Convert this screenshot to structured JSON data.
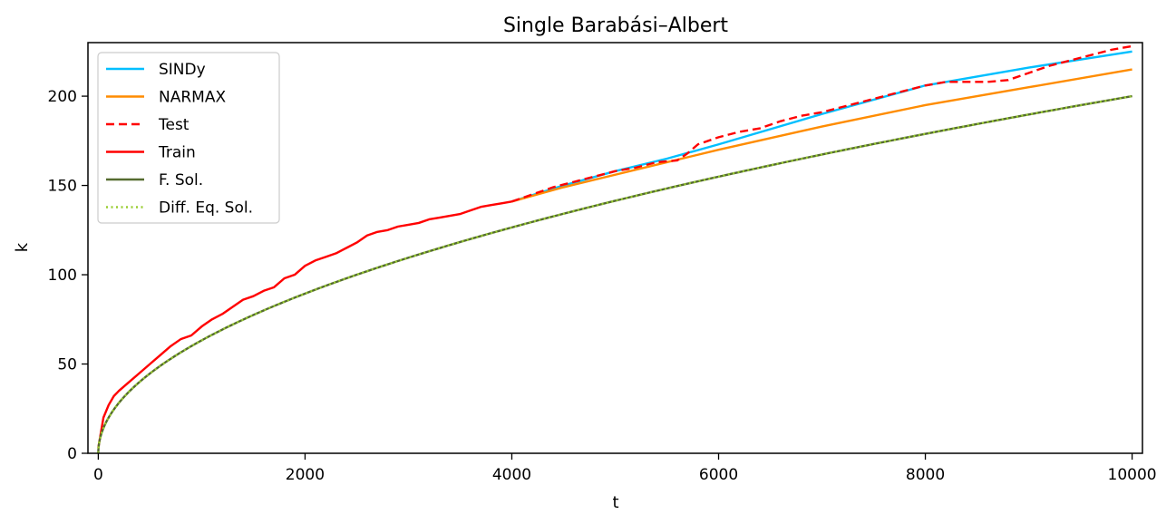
{
  "chart_data": {
    "type": "line",
    "title": "Single Barabási–Albert",
    "xlabel": "t",
    "ylabel": "k",
    "xlim": [
      -100,
      10100
    ],
    "ylim": [
      0,
      230
    ],
    "xticks": [
      0,
      2000,
      4000,
      6000,
      8000,
      10000
    ],
    "yticks": [
      0,
      50,
      100,
      150,
      200
    ],
    "xtick_labels": [
      "0",
      "2000",
      "4000",
      "6000",
      "8000",
      "10000"
    ],
    "ytick_labels": [
      "0",
      "50",
      "100",
      "150",
      "200"
    ],
    "grid": false,
    "legend_position": "upper-left",
    "series": [
      {
        "name": "SINDy",
        "color": "#00bfff",
        "style": "solid",
        "x": [
          4000,
          4500,
          5000,
          5500,
          6000,
          7000,
          8000,
          9000,
          10000
        ],
        "y": [
          141,
          150,
          158,
          165,
          173,
          190,
          206,
          216,
          225
        ]
      },
      {
        "name": "NARMAX",
        "color": "#ff8c00",
        "style": "solid",
        "x": [
          4000,
          4500,
          5000,
          5500,
          6000,
          7000,
          8000,
          9000,
          10000
        ],
        "y": [
          141,
          149,
          156,
          163,
          170,
          183,
          195,
          205,
          215
        ]
      },
      {
        "name": "Test",
        "color": "#ff0000",
        "style": "dashed",
        "x": [
          4000,
          4200,
          4400,
          4600,
          4800,
          5000,
          5200,
          5400,
          5600,
          5700,
          5800,
          6000,
          6200,
          6400,
          6600,
          6800,
          7000,
          7200,
          7400,
          7600,
          7800,
          8000,
          8200,
          8400,
          8600,
          8800,
          9000,
          9200,
          9400,
          9600,
          9800,
          10000
        ],
        "y": [
          141,
          145,
          149,
          152,
          155,
          158,
          160,
          163,
          164,
          168,
          173,
          177,
          180,
          182,
          186,
          189,
          191,
          194,
          197,
          200,
          203,
          206,
          208,
          208,
          208,
          209,
          213,
          217,
          220,
          223,
          226,
          228
        ]
      },
      {
        "name": "Train",
        "color": "#ff0000",
        "style": "solid",
        "x": [
          0,
          50,
          100,
          150,
          200,
          300,
          400,
          500,
          600,
          700,
          800,
          900,
          1000,
          1100,
          1200,
          1300,
          1400,
          1500,
          1600,
          1700,
          1800,
          1900,
          2000,
          2100,
          2200,
          2300,
          2400,
          2500,
          2600,
          2700,
          2800,
          2900,
          3000,
          3100,
          3200,
          3300,
          3400,
          3500,
          3600,
          3700,
          3800,
          3900,
          4000
        ],
        "y": [
          3,
          20,
          27,
          32,
          35,
          40,
          45,
          50,
          55,
          60,
          64,
          66,
          71,
          75,
          78,
          82,
          86,
          88,
          91,
          93,
          98,
          100,
          105,
          108,
          110,
          112,
          115,
          118,
          122,
          124,
          125,
          127,
          128,
          129,
          131,
          132,
          133,
          134,
          136,
          138,
          139,
          140,
          141
        ]
      },
      {
        "name": "F. Sol.",
        "color": "#556b2f",
        "style": "solid",
        "formula": "2*sqrt(t)",
        "x": [
          10,
          50,
          100,
          200,
          300,
          500,
          800,
          1000,
          1500,
          2000,
          3000,
          4000,
          5000,
          6000,
          7000,
          8000,
          9000,
          10000
        ],
        "y": [
          6.3,
          14.1,
          20,
          28.3,
          34.6,
          44.7,
          56.6,
          63.2,
          77.5,
          89.4,
          109.5,
          126.5,
          141.4,
          154.9,
          167.3,
          178.9,
          189.7,
          200
        ]
      },
      {
        "name": "Diff. Eq. Sol.",
        "color": "#9acd32",
        "style": "dotted",
        "formula": "2*sqrt(t)",
        "x": [
          10,
          50,
          100,
          200,
          300,
          500,
          800,
          1000,
          1500,
          2000,
          3000,
          4000,
          5000,
          6000,
          7000,
          8000,
          9000,
          10000
        ],
        "y": [
          6.3,
          14.1,
          20,
          28.3,
          34.6,
          44.7,
          56.6,
          63.2,
          77.5,
          89.4,
          109.5,
          126.5,
          141.4,
          154.9,
          167.3,
          178.9,
          189.7,
          200
        ]
      }
    ]
  }
}
